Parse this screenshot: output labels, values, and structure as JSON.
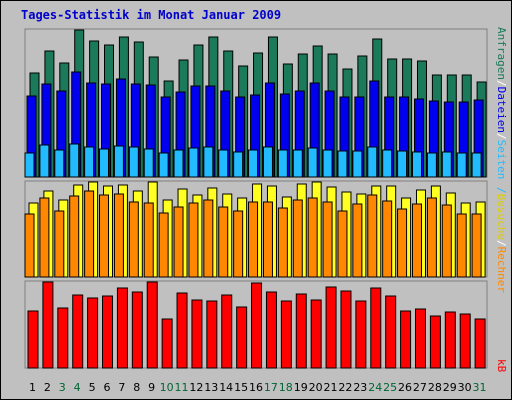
{
  "title": "Tages-Statistik im Monat Januar 2009",
  "colors": {
    "anfragen": "#1a7a5a",
    "dateien": "#0000ee",
    "seiten": "#22bbff",
    "besuche": "#ffff22",
    "rechner": "#ff8800",
    "kb": "#ff0000",
    "weekend_label": "#006633",
    "weekday_label": "#000000",
    "seperator": "#ffffff"
  },
  "right_labels": {
    "anfragen": "Anfragen",
    "sep1": "/",
    "dateien": "Dateien",
    "sep2": "/",
    "seiten": "Seiten",
    "sep3": "/",
    "besuche": "Besuche",
    "sep4": "/",
    "rechner": "Rechner",
    "kb": "kB"
  },
  "chart_data": [
    {
      "type": "bar",
      "panel": "requests",
      "ymax_label": "39764",
      "ylim": [
        0,
        39764
      ],
      "categories": [
        "1",
        "2",
        "3",
        "4",
        "5",
        "6",
        "7",
        "8",
        "9",
        "10",
        "11",
        "12",
        "13",
        "14",
        "15",
        "16",
        "17",
        "18",
        "19",
        "20",
        "21",
        "22",
        "23",
        "24",
        "25",
        "26",
        "27",
        "28",
        "29",
        "30",
        "31"
      ],
      "weekend_days": [
        "3",
        "4",
        "10",
        "11",
        "17",
        "18",
        "24",
        "25",
        "31"
      ],
      "series": [
        {
          "name": "Anfragen",
          "values": [
            28000,
            34000,
            30800,
            39764,
            36800,
            35800,
            37900,
            36400,
            32400,
            26000,
            31600,
            35800,
            38000,
            34000,
            30000,
            33500,
            38000,
            30500,
            33200,
            35500,
            33300,
            29300,
            32600,
            37200,
            31900,
            31900,
            31400,
            27700,
            27600,
            27700,
            25600
          ]
        },
        {
          "name": "Dateien",
          "values": [
            21900,
            25200,
            23200,
            28500,
            25500,
            25200,
            26600,
            25100,
            25000,
            21600,
            23000,
            24600,
            24700,
            23300,
            21700,
            22300,
            25300,
            22500,
            23200,
            25300,
            23200,
            21600,
            21600,
            26000,
            21600,
            21600,
            21000,
            20600,
            20300,
            20300,
            20800
          ]
        },
        {
          "name": "Seiten",
          "values": [
            6500,
            8600,
            7400,
            8800,
            8000,
            7600,
            8300,
            8000,
            7500,
            6600,
            7200,
            7900,
            8000,
            7400,
            6800,
            7300,
            8000,
            7400,
            7400,
            7800,
            7400,
            7000,
            6900,
            8100,
            7400,
            6900,
            6800,
            6500,
            6700,
            6400,
            6500
          ]
        }
      ]
    },
    {
      "type": "bar",
      "panel": "visits",
      "ymax_label": "743",
      "ylim": [
        0,
        743
      ],
      "categories": [
        "1",
        "2",
        "3",
        "4",
        "5",
        "6",
        "7",
        "8",
        "9",
        "10",
        "11",
        "12",
        "13",
        "14",
        "15",
        "16",
        "17",
        "18",
        "19",
        "20",
        "21",
        "22",
        "23",
        "24",
        "25",
        "26",
        "27",
        "28",
        "29",
        "30",
        "31"
      ],
      "series": [
        {
          "name": "Besuche",
          "values": [
            580,
            669,
            600,
            720,
            743,
            709,
            718,
            669,
            743,
            600,
            689,
            642,
            699,
            650,
            619,
            728,
            709,
            625,
            728,
            743,
            700,
            665,
            649,
            710,
            709,
            620,
            684,
            708,
            660,
            579,
            589
          ]
        },
        {
          "name": "Rechner",
          "values": [
            490,
            617,
            520,
            633,
            669,
            642,
            649,
            590,
            575,
            500,
            550,
            575,
            601,
            548,
            519,
            590,
            590,
            536,
            600,
            620,
            590,
            517,
            569,
            640,
            597,
            534,
            570,
            620,
            560,
            489,
            495
          ]
        }
      ]
    },
    {
      "type": "bar",
      "panel": "kb",
      "ymax_label": "188632",
      "ylim": [
        0,
        188632
      ],
      "categories": [
        "1",
        "2",
        "3",
        "4",
        "5",
        "6",
        "7",
        "8",
        "9",
        "10",
        "11",
        "12",
        "13",
        "14",
        "15",
        "16",
        "17",
        "18",
        "19",
        "20",
        "21",
        "22",
        "23",
        "24",
        "25",
        "26",
        "27",
        "28",
        "29",
        "30",
        "31"
      ],
      "series": [
        {
          "name": "kB",
          "values": [
            124000,
            188632,
            132000,
            160000,
            153000,
            158000,
            176000,
            167000,
            188632,
            107000,
            164000,
            149000,
            146000,
            160000,
            134000,
            186000,
            166000,
            146000,
            162000,
            150000,
            178000,
            168000,
            146000,
            176000,
            159000,
            126000,
            130000,
            113000,
            123000,
            118000,
            108000
          ]
        }
      ]
    }
  ]
}
